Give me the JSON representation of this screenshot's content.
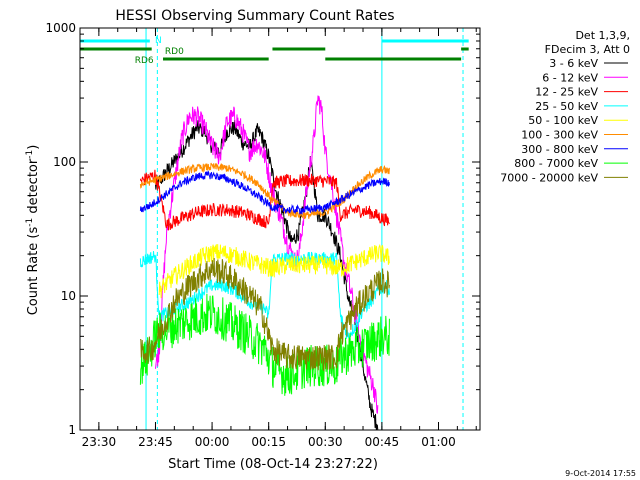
{
  "chart_data": {
    "type": "line",
    "title": "HESSI Observing Summary Count Rates",
    "xlabel": "Start Time (08-Oct-14 23:27:22)",
    "ylabel_main": "Count Rate (s",
    "ylabel_sup1": "-1",
    "ylabel_mid": " detector",
    "ylabel_sup2": "-1",
    "ylabel_end": ")",
    "y_scale": "log",
    "ylim": [
      1,
      1000
    ],
    "yticks": [
      {
        "v": 1,
        "label": "1"
      },
      {
        "v": 10,
        "label": "10"
      },
      {
        "v": 100,
        "label": "100"
      },
      {
        "v": 1000,
        "label": "1000"
      }
    ],
    "xlim_min": [
      -5,
      101
    ],
    "xticks": [
      {
        "m": 0,
        "label": "23:30"
      },
      {
        "m": 15,
        "label": "23:45"
      },
      {
        "m": 30,
        "label": "00:00"
      },
      {
        "m": 45,
        "label": "00:15"
      },
      {
        "m": 60,
        "label": "00:30"
      },
      {
        "m": 75,
        "label": "00:45"
      },
      {
        "m": 90,
        "label": "01:00"
      }
    ],
    "legend_header": [
      "Det 1,3,9,",
      "FDecim 3, Att 0"
    ],
    "series": [
      {
        "name": "3 - 6 keV",
        "color": "#000000",
        "points": [
          [
            15,
            65
          ],
          [
            18,
            85
          ],
          [
            21,
            110
          ],
          [
            24,
            150
          ],
          [
            26,
            180
          ],
          [
            28,
            170
          ],
          [
            30,
            130
          ],
          [
            32,
            120
          ],
          [
            34,
            170
          ],
          [
            36,
            180
          ],
          [
            38,
            140
          ],
          [
            40,
            130
          ],
          [
            42,
            170
          ],
          [
            43,
            160
          ],
          [
            45,
            110
          ],
          [
            47,
            60
          ],
          [
            49,
            40
          ],
          [
            51,
            25
          ],
          [
            53,
            30
          ],
          [
            55,
            60
          ],
          [
            56,
            100
          ],
          [
            57,
            70
          ],
          [
            58,
            40
          ],
          [
            60,
            40
          ],
          [
            62,
            30
          ],
          [
            64,
            20
          ],
          [
            66,
            10
          ],
          [
            68,
            6
          ],
          [
            70,
            3
          ],
          [
            72,
            1.5
          ],
          [
            73,
            1.2
          ],
          [
            74,
            1.1
          ]
        ]
      },
      {
        "name": "6 - 12 keV",
        "color": "#ff00ff",
        "points": [
          [
            15,
            3
          ],
          [
            16,
            4
          ],
          [
            17,
            12
          ],
          [
            18,
            30
          ],
          [
            20,
            70
          ],
          [
            22,
            150
          ],
          [
            24,
            220
          ],
          [
            26,
            220
          ],
          [
            28,
            180
          ],
          [
            30,
            130
          ],
          [
            32,
            110
          ],
          [
            34,
            200
          ],
          [
            36,
            220
          ],
          [
            38,
            170
          ],
          [
            40,
            120
          ],
          [
            42,
            140
          ],
          [
            44,
            110
          ],
          [
            46,
            60
          ],
          [
            48,
            40
          ],
          [
            50,
            25
          ],
          [
            52,
            18
          ],
          [
            53,
            20
          ],
          [
            55,
            60
          ],
          [
            57,
            150
          ],
          [
            58,
            300
          ],
          [
            59,
            250
          ],
          [
            60,
            120
          ],
          [
            62,
            60
          ],
          [
            63,
            40
          ],
          [
            65,
            18
          ],
          [
            67,
            10
          ],
          [
            69,
            5
          ],
          [
            71,
            3
          ],
          [
            73,
            2
          ],
          [
            74,
            1.3
          ]
        ]
      },
      {
        "name": "12 - 25 keV",
        "color": "#ff0000",
        "points": [
          [
            11,
            72
          ],
          [
            13,
            76
          ],
          [
            15,
            80
          ],
          [
            18,
            34
          ],
          [
            22,
            38
          ],
          [
            26,
            42
          ],
          [
            30,
            44
          ],
          [
            34,
            44
          ],
          [
            38,
            42
          ],
          [
            42,
            38
          ],
          [
            45,
            35
          ],
          [
            46,
            70
          ],
          [
            50,
            72
          ],
          [
            55,
            73
          ],
          [
            60,
            72
          ],
          [
            63,
            70
          ],
          [
            64,
            40
          ],
          [
            68,
            44
          ],
          [
            72,
            42
          ],
          [
            75,
            38
          ],
          [
            77,
            36
          ]
        ]
      },
      {
        "name": "25 - 50 keV",
        "color": "#00ffff",
        "points": [
          [
            11,
            18
          ],
          [
            13,
            19
          ],
          [
            15,
            20
          ],
          [
            16,
            7
          ],
          [
            20,
            8
          ],
          [
            24,
            9
          ],
          [
            28,
            11
          ],
          [
            30,
            12
          ],
          [
            33,
            12
          ],
          [
            36,
            11
          ],
          [
            40,
            9
          ],
          [
            44,
            8
          ],
          [
            45,
            7
          ],
          [
            46,
            19
          ],
          [
            50,
            19
          ],
          [
            55,
            19
          ],
          [
            60,
            19
          ],
          [
            63,
            19
          ],
          [
            64,
            7
          ],
          [
            66,
            5
          ],
          [
            68,
            6
          ],
          [
            70,
            8
          ],
          [
            72,
            9
          ],
          [
            74,
            11
          ],
          [
            76,
            12
          ],
          [
            77,
            11
          ]
        ]
      },
      {
        "name": "50 - 100 keV",
        "color": "#ffff00",
        "points": [
          [
            16,
            11
          ],
          [
            20,
            14
          ],
          [
            24,
            17
          ],
          [
            28,
            20
          ],
          [
            30,
            21
          ],
          [
            33,
            21
          ],
          [
            36,
            20
          ],
          [
            40,
            18
          ],
          [
            43,
            17
          ],
          [
            46,
            16
          ],
          [
            50,
            17
          ],
          [
            55,
            17
          ],
          [
            60,
            17
          ],
          [
            64,
            16
          ],
          [
            68,
            18
          ],
          [
            72,
            20
          ],
          [
            74,
            21
          ],
          [
            76,
            20
          ],
          [
            77,
            19
          ]
        ]
      },
      {
        "name": "100 - 300 keV",
        "color": "#ff8c00",
        "points": [
          [
            11,
            68
          ],
          [
            14,
            72
          ],
          [
            18,
            78
          ],
          [
            22,
            85
          ],
          [
            26,
            90
          ],
          [
            30,
            92
          ],
          [
            34,
            90
          ],
          [
            38,
            82
          ],
          [
            42,
            70
          ],
          [
            46,
            52
          ],
          [
            50,
            42
          ],
          [
            55,
            40
          ],
          [
            60,
            42
          ],
          [
            64,
            50
          ],
          [
            68,
            65
          ],
          [
            72,
            80
          ],
          [
            75,
            88
          ],
          [
            77,
            85
          ]
        ]
      },
      {
        "name": "300 - 800 keV",
        "color": "#0000ff",
        "points": [
          [
            11,
            44
          ],
          [
            14,
            48
          ],
          [
            18,
            58
          ],
          [
            22,
            70
          ],
          [
            26,
            78
          ],
          [
            30,
            80
          ],
          [
            34,
            75
          ],
          [
            38,
            66
          ],
          [
            42,
            56
          ],
          [
            46,
            46
          ],
          [
            50,
            44
          ],
          [
            55,
            44
          ],
          [
            60,
            46
          ],
          [
            64,
            52
          ],
          [
            68,
            60
          ],
          [
            72,
            68
          ],
          [
            75,
            72
          ],
          [
            77,
            70
          ]
        ]
      },
      {
        "name": "800 - 7000 keV",
        "color": "#00ff00",
        "points": [
          [
            11,
            3
          ],
          [
            13,
            3.5
          ],
          [
            15,
            5
          ],
          [
            17,
            5.5
          ],
          [
            20,
            6
          ],
          [
            23,
            6.5
          ],
          [
            26,
            7
          ],
          [
            30,
            7.5
          ],
          [
            34,
            6.5
          ],
          [
            38,
            5.5
          ],
          [
            42,
            4.5
          ],
          [
            44,
            4
          ],
          [
            46,
            3
          ],
          [
            50,
            2.5
          ],
          [
            55,
            3
          ],
          [
            60,
            3
          ],
          [
            63,
            3
          ],
          [
            64,
            3.5
          ],
          [
            68,
            4
          ],
          [
            72,
            4.5
          ],
          [
            75,
            5
          ],
          [
            77,
            5
          ]
        ]
      },
      {
        "name": "7000 - 20000 keV",
        "color": "#808000",
        "points": [
          [
            11,
            3.8
          ],
          [
            14,
            4
          ],
          [
            17,
            6
          ],
          [
            20,
            9
          ],
          [
            24,
            12
          ],
          [
            28,
            15
          ],
          [
            30,
            16
          ],
          [
            33,
            15
          ],
          [
            36,
            13
          ],
          [
            40,
            10
          ],
          [
            43,
            8
          ],
          [
            46,
            4
          ],
          [
            50,
            3.5
          ],
          [
            55,
            3.5
          ],
          [
            60,
            3.5
          ],
          [
            63,
            3.5
          ],
          [
            64,
            5
          ],
          [
            68,
            8
          ],
          [
            72,
            11
          ],
          [
            75,
            13
          ],
          [
            77,
            12
          ]
        ]
      }
    ],
    "bands": [
      {
        "label": "N",
        "color": "#00ffff",
        "y_level": "top",
        "segments": [
          [
            -5,
            13.5
          ],
          [
            75,
            98
          ]
        ]
      },
      {
        "label": "RD0",
        "color": "#008000",
        "y_level": "upper",
        "segments": [
          [
            -5,
            14
          ],
          [
            46,
            60
          ],
          [
            96,
            98
          ]
        ]
      },
      {
        "label": "RD6",
        "color": "#008000",
        "y_level": "lower",
        "segments": [
          [
            17,
            45
          ],
          [
            60,
            96
          ]
        ]
      }
    ],
    "vlines": [
      {
        "m": 12.5,
        "color": "#00ffff",
        "style": "solid"
      },
      {
        "m": 15.5,
        "color": "#00ffff",
        "style": "dashed"
      },
      {
        "m": 75,
        "color": "#00ffff",
        "style": "solid"
      },
      {
        "m": 96.5,
        "color": "#00ffff",
        "style": "dashed"
      }
    ]
  },
  "footer_timestamp": "9-Oct-2014 17:55"
}
